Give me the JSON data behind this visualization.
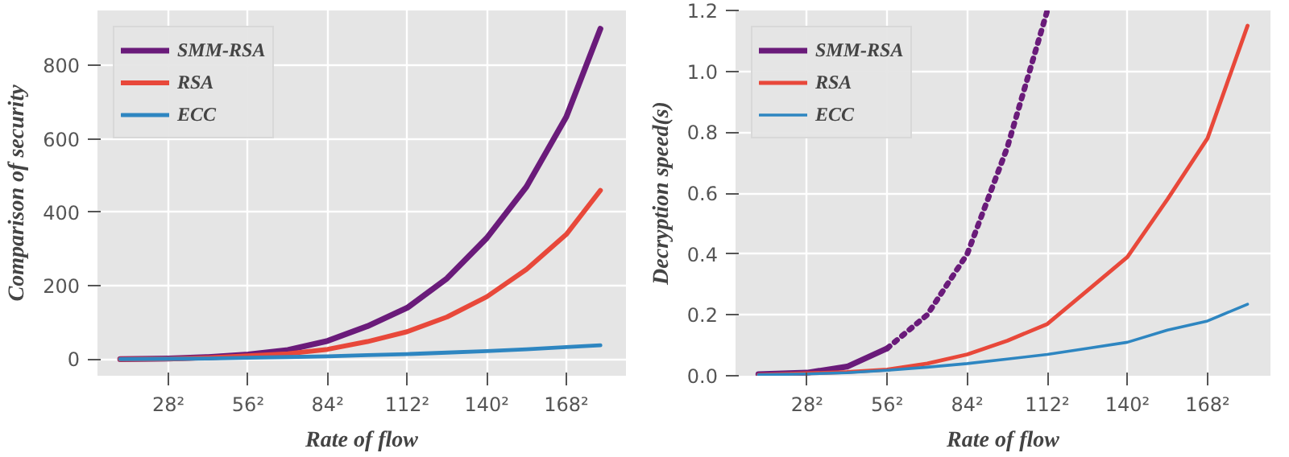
{
  "chart_data": [
    {
      "type": "line",
      "xlabel": "Rate of flow",
      "ylabel": "Comparison of security",
      "xlim": [
        3,
        189
      ],
      "ylim": [
        -45,
        950
      ],
      "xticks": [
        {
          "value": 28,
          "label": "28²"
        },
        {
          "value": 56,
          "label": "56²"
        },
        {
          "value": 84,
          "label": "84²"
        },
        {
          "value": 112,
          "label": "112²"
        },
        {
          "value": 140,
          "label": "140²"
        },
        {
          "value": 168,
          "label": "168²"
        }
      ],
      "yticks": [
        0,
        200,
        400,
        600,
        800
      ],
      "grid": true,
      "legend": "top left",
      "marker": "none",
      "line_style": "solid",
      "x": [
        11,
        28,
        42,
        56,
        70,
        84,
        98,
        112,
        126,
        140,
        154,
        168,
        180
      ],
      "series": [
        {
          "name": "SMM-RSA",
          "color": "#6a1b7a",
          "values": [
            0,
            2,
            6,
            13,
            25,
            50,
            90,
            140,
            220,
            330,
            470,
            660,
            900
          ]
        },
        {
          "name": "RSA",
          "color": "#e8483a",
          "values": [
            0,
            1,
            4,
            9,
            15,
            27,
            48,
            75,
            115,
            170,
            245,
            340,
            460
          ]
        },
        {
          "name": "ECC",
          "color": "#2e86c1",
          "values": [
            0,
            1,
            2,
            4,
            6,
            8,
            11,
            14,
            18,
            22,
            27,
            33,
            38
          ]
        }
      ]
    },
    {
      "type": "line",
      "xlabel": "Rate of flow",
      "ylabel": "Decryption speed(s)",
      "xlim": [
        3,
        190
      ],
      "ylim": [
        0,
        1.2
      ],
      "xticks": [
        {
          "value": 28,
          "label": "28²"
        },
        {
          "value": 56,
          "label": "56²"
        },
        {
          "value": 84,
          "label": "84²"
        },
        {
          "value": 112,
          "label": "112²"
        },
        {
          "value": 140,
          "label": "140²"
        },
        {
          "value": 168,
          "label": "168²"
        }
      ],
      "yticks": [
        {
          "value": 0,
          "label": "0.0"
        },
        {
          "value": 0.2,
          "label": "0.2"
        },
        {
          "value": 0.4,
          "label": "0.4"
        },
        {
          "value": 0.6,
          "label": "0.6"
        },
        {
          "value": 0.8,
          "label": "0.8"
        },
        {
          "value": 1.0,
          "label": "1.0"
        },
        {
          "value": 1.2,
          "label": "1.2"
        }
      ],
      "grid": true,
      "legend": "top left",
      "marker": "none",
      "line_style": "solid",
      "x": [
        11,
        28,
        42,
        56,
        70,
        84,
        98,
        112,
        126,
        140,
        154,
        168,
        182
      ],
      "series": [
        {
          "name": "SMM-RSA",
          "color": "#6a1b7a",
          "x": [
            11,
            28,
            42,
            56
          ],
          "values": [
            0.005,
            0.01,
            0.03,
            0.09
          ]
        },
        {
          "color": "#6a1b7a",
          "line_style": "dotted",
          "x": [
            56,
            70,
            84,
            98,
            112
          ],
          "values": [
            0.09,
            0.2,
            0.4,
            0.75,
            1.2
          ]
        },
        {
          "name": "RSA",
          "color": "#e8483a",
          "values": [
            0.003,
            0.008,
            0.012,
            0.02,
            0.04,
            0.07,
            0.115,
            0.17,
            0.28,
            0.39,
            0.58,
            0.78,
            1.15
          ]
        },
        {
          "name": "ECC",
          "color": "#2e86c1",
          "values": [
            0.003,
            0.006,
            0.01,
            0.018,
            0.028,
            0.04,
            0.055,
            0.07,
            0.09,
            0.11,
            0.15,
            0.18,
            0.235
          ]
        }
      ]
    }
  ]
}
